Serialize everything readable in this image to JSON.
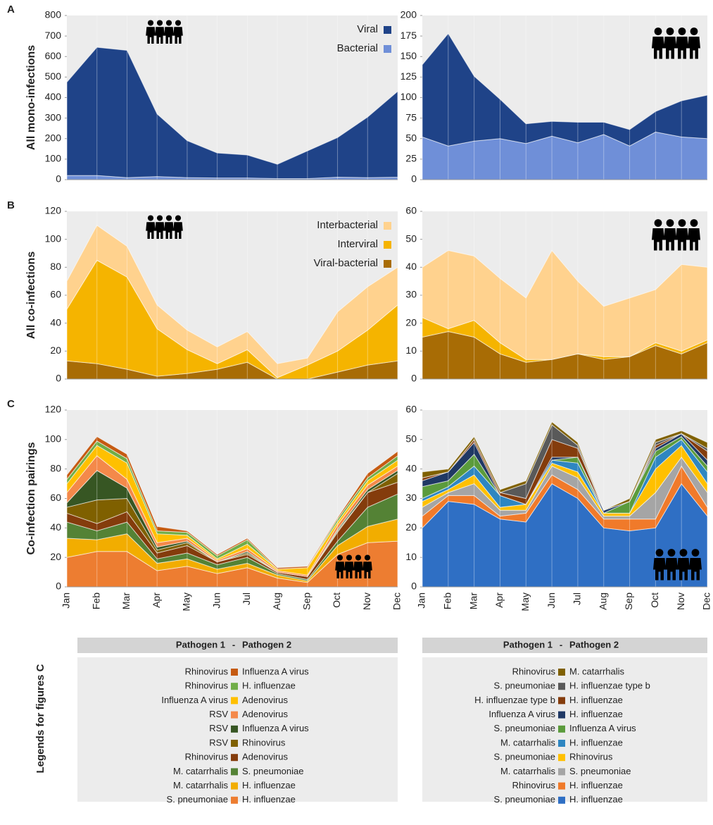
{
  "chart_data": [
    {
      "type": "area",
      "stacked": true,
      "panel": "A",
      "ylabel": "All mono-infections",
      "legend": "upper right",
      "ylim": [
        0,
        800
      ],
      "yticks": [
        0,
        100,
        200,
        300,
        400,
        500,
        600,
        700,
        800
      ],
      "series": [
        {
          "name": "Bacterial",
          "color": "#6f8fd8",
          "values": [
            20,
            20,
            10,
            15,
            10,
            8,
            8,
            5,
            5,
            12,
            10,
            12
          ]
        },
        {
          "name": "Viral",
          "color": "#1f4388",
          "values": [
            455,
            625,
            620,
            305,
            180,
            122,
            112,
            70,
            135,
            193,
            295,
            418
          ]
        }
      ]
    },
    {
      "type": "area",
      "stacked": true,
      "ylim": [
        0,
        200
      ],
      "yticks": [
        0,
        25,
        50,
        75,
        100,
        125,
        150,
        175,
        200
      ],
      "series": [
        {
          "color": "#6f8fd8",
          "values": [
            52,
            41,
            47,
            50,
            44,
            53,
            45,
            55,
            41,
            58,
            52,
            50
          ]
        },
        {
          "color": "#1f4388",
          "values": [
            88,
            137,
            79,
            48,
            24,
            18,
            25,
            15,
            20,
            25,
            44,
            53
          ]
        }
      ]
    },
    {
      "type": "area",
      "stacked": true,
      "panel": "B",
      "ylabel": "All co-infections",
      "legend": "upper right",
      "ylim": [
        0,
        120
      ],
      "yticks": [
        0,
        20,
        40,
        60,
        80,
        100,
        120
      ],
      "series": [
        {
          "name": "Viral-bacterial",
          "color": "#a86c05",
          "values": [
            13,
            11,
            7,
            2,
            4,
            7,
            12,
            0,
            0,
            5,
            10,
            13
          ]
        },
        {
          "name": "Interviral",
          "color": "#f5b400",
          "values": [
            37,
            74,
            66,
            34,
            17,
            4,
            9,
            1,
            10,
            15,
            25,
            40
          ]
        },
        {
          "name": "Interbacterial",
          "color": "#ffd28e",
          "values": [
            20,
            25,
            22,
            17,
            14,
            12,
            13,
            10,
            5,
            28,
            31,
            27
          ]
        }
      ]
    },
    {
      "type": "area",
      "stacked": true,
      "ylim": [
        0,
        60
      ],
      "yticks": [
        0,
        10,
        20,
        30,
        40,
        50,
        60
      ],
      "series": [
        {
          "color": "#a86c05",
          "values": [
            15,
            17,
            15,
            9,
            6,
            7,
            9,
            7,
            8,
            12,
            9,
            13
          ]
        },
        {
          "color": "#f5b400",
          "values": [
            7,
            1,
            6,
            4,
            1,
            0,
            0,
            1,
            0,
            1,
            1,
            1
          ]
        },
        {
          "color": "#ffd28e",
          "values": [
            18,
            28,
            23,
            23,
            22,
            39,
            26,
            18,
            21,
            19,
            31,
            26
          ]
        }
      ]
    },
    {
      "type": "area",
      "stacked": true,
      "panel": "C",
      "ylabel": "Co-infection pairings",
      "categories": [
        "Jan",
        "Feb",
        "Mar",
        "Apr",
        "May",
        "Jun",
        "Jul",
        "Aug",
        "Sep",
        "Oct",
        "Nov",
        "Dec"
      ],
      "ylim": [
        0,
        120
      ],
      "yticks": [
        0,
        20,
        40,
        60,
        80,
        100,
        120
      ],
      "series": [
        {
          "pathogens": [
            "S. pneumoniae",
            "H. influenzae"
          ],
          "color": "#ed7d31",
          "values": [
            20,
            24,
            24,
            11,
            14,
            9,
            13,
            6,
            3,
            22,
            30,
            31
          ]
        },
        {
          "pathogens": [
            "M. catarrhalis",
            "H. influenzae"
          ],
          "color": "#f2ad00",
          "values": [
            13,
            8,
            12,
            5,
            5,
            3,
            3,
            2,
            1,
            6,
            11,
            15
          ]
        },
        {
          "pathogens": [
            "M. catarrhalis",
            "S. pneumoniae"
          ],
          "color": "#548235",
          "values": [
            11,
            6,
            8,
            3,
            4,
            3,
            4,
            1,
            1,
            3,
            13,
            17
          ]
        },
        {
          "pathogens": [
            "Rhinovirus",
            "Adenovirus"
          ],
          "color": "#843c0c",
          "values": [
            6,
            5,
            7,
            4,
            5,
            2,
            2,
            1,
            2,
            6,
            10,
            8
          ]
        },
        {
          "pathogens": [
            "RSV",
            "Rhinovirus"
          ],
          "color": "#7f6000",
          "values": [
            4,
            16,
            9,
            2,
            2,
            0,
            1,
            0,
            0,
            1,
            0,
            6
          ]
        },
        {
          "pathogens": [
            "RSV",
            "Influenza A virus"
          ],
          "color": "#375623",
          "values": [
            3,
            20,
            7,
            2,
            1,
            0,
            1,
            0,
            0,
            1,
            2,
            2
          ]
        },
        {
          "pathogens": [
            "RSV",
            "Adenovirus"
          ],
          "color": "#f4894a",
          "values": [
            7,
            10,
            6,
            3,
            2,
            1,
            2,
            1,
            1,
            3,
            3,
            3
          ]
        },
        {
          "pathogens": [
            "Influenza A virus",
            "Adenovirus"
          ],
          "color": "#ffc000",
          "values": [
            6,
            7,
            11,
            6,
            2,
            1,
            3,
            1,
            5,
            2,
            3,
            4
          ]
        },
        {
          "pathogens": [
            "Rhinovirus",
            "H. influenzae"
          ],
          "color": "#70ad47",
          "values": [
            3,
            3,
            3,
            2,
            2,
            2,
            3,
            0,
            0,
            2,
            2,
            3
          ]
        },
        {
          "pathogens": [
            "Rhinovirus",
            "Influenza A virus"
          ],
          "color": "#c55a11",
          "values": [
            3,
            3,
            3,
            3,
            1,
            1,
            1,
            1,
            1,
            1,
            3,
            3
          ]
        }
      ]
    },
    {
      "type": "area",
      "stacked": true,
      "categories": [
        "Jan",
        "Feb",
        "Mar",
        "Apr",
        "May",
        "Jun",
        "Jul",
        "Aug",
        "Sep",
        "Oct",
        "Nov",
        "Dec"
      ],
      "ylim": [
        0,
        60
      ],
      "yticks": [
        0,
        10,
        20,
        30,
        40,
        50,
        60
      ],
      "series": [
        {
          "pathogens": [
            "S. pneumoniae",
            "H. influenzae"
          ],
          "color": "#2f6fc4",
          "values": [
            20,
            29,
            28,
            23,
            22,
            35,
            30,
            20,
            19,
            20,
            35,
            24
          ]
        },
        {
          "pathogens": [
            "Rhinovirus",
            "H. influenzae"
          ],
          "color": "#f07a2a",
          "values": [
            4,
            2,
            3,
            1,
            3,
            3,
            3,
            3,
            4,
            3,
            6,
            3
          ]
        },
        {
          "pathogens": [
            "M. catarrhalis",
            "S. pneumoniae"
          ],
          "color": "#a5a5a5",
          "values": [
            3,
            1,
            4,
            2,
            1,
            3,
            4,
            1,
            1,
            9,
            3,
            5
          ]
        },
        {
          "pathogens": [
            "S. pneumoniae",
            "Rhinovirus"
          ],
          "color": "#ffc000",
          "values": [
            2,
            1,
            3,
            1,
            2,
            1,
            2,
            1,
            1,
            8,
            4,
            3
          ]
        },
        {
          "pathogens": [
            "M. catarrhalis",
            "H. influenzae"
          ],
          "color": "#2e86c1",
          "values": [
            1,
            1,
            3,
            4,
            0,
            1,
            3,
            0,
            0,
            4,
            2,
            4
          ]
        },
        {
          "pathogens": [
            "S. pneumoniae",
            "Influenza A virus"
          ],
          "color": "#5b9b3c",
          "values": [
            4,
            2,
            4,
            0,
            0,
            0,
            2,
            0,
            4,
            2,
            1,
            2
          ]
        },
        {
          "pathogens": [
            "Influenza A virus",
            "H. influenzae"
          ],
          "color": "#1f3864",
          "values": [
            2,
            3,
            4,
            0,
            0,
            1,
            0,
            1,
            0,
            1,
            1,
            2
          ]
        },
        {
          "pathogens": [
            "H. influenzae type b",
            "H. influenzae"
          ],
          "color": "#843c0c",
          "values": [
            1,
            0,
            1,
            1,
            2,
            6,
            3,
            0,
            0,
            1,
            0,
            3
          ]
        },
        {
          "pathogens": [
            "S. pneumoniae",
            "H. influenzae type b"
          ],
          "color": "#595959",
          "values": [
            0,
            0,
            0,
            0,
            5,
            5,
            1,
            0,
            0,
            1,
            0,
            1
          ]
        },
        {
          "pathogens": [
            "Rhinovirus",
            "M. catarrhalis"
          ],
          "color": "#7f6000",
          "values": [
            2,
            1,
            1,
            1,
            1,
            1,
            1,
            0,
            1,
            1,
            1,
            2
          ]
        }
      ]
    }
  ],
  "legend_c": {
    "title": "Legends for figures C",
    "header": [
      "Pathogen 1",
      "-",
      "Pathogen 2"
    ]
  }
}
